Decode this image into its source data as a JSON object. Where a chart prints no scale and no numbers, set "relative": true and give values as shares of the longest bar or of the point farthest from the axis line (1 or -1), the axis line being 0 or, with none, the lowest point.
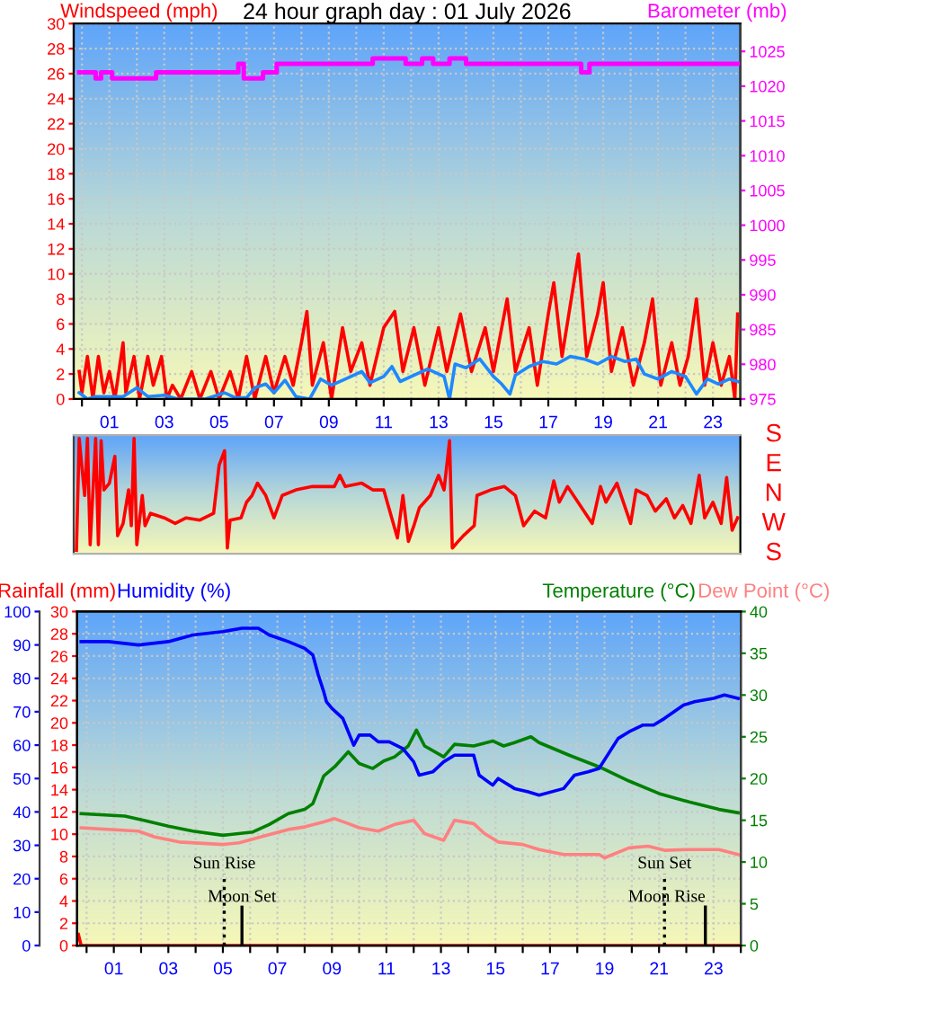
{
  "chart_data": [
    {
      "type": "line",
      "title": "24 hour graph day : 01 July 2026",
      "ylabel": "Windspeed (mph)",
      "y2label": "Barometer (mb)",
      "xlim": [
        -0.3,
        24
      ],
      "xticks": [
        {
          "value": 0,
          "label": null
        },
        {
          "value": 1,
          "label": "01"
        },
        {
          "value": 2,
          "label": null
        },
        {
          "value": 3,
          "label": "03"
        },
        {
          "value": 4,
          "label": null
        },
        {
          "value": 5,
          "label": "05"
        },
        {
          "value": 6,
          "label": null
        },
        {
          "value": 7,
          "label": "07"
        },
        {
          "value": 8,
          "label": null
        },
        {
          "value": 9,
          "label": "09"
        },
        {
          "value": 10,
          "label": null
        },
        {
          "value": 11,
          "label": "11"
        },
        {
          "value": 12,
          "label": null
        },
        {
          "value": 13,
          "label": "13"
        },
        {
          "value": 14,
          "label": null
        },
        {
          "value": 15,
          "label": "15"
        },
        {
          "value": 16,
          "label": null
        },
        {
          "value": 17,
          "label": "17"
        },
        {
          "value": 18,
          "label": null
        },
        {
          "value": 19,
          "label": "19"
        },
        {
          "value": 20,
          "label": null
        },
        {
          "value": 21,
          "label": "21"
        },
        {
          "value": 22,
          "label": null
        },
        {
          "value": 23,
          "label": "23"
        },
        {
          "value": 24,
          "label": null
        }
      ],
      "ylim": [
        0,
        30
      ],
      "yticks": [
        0,
        2,
        4,
        6,
        8,
        10,
        12,
        14,
        16,
        18,
        20,
        22,
        24,
        26,
        28,
        30
      ],
      "y2lim": [
        975,
        1029
      ],
      "y2ticks": [
        975,
        980,
        985,
        990,
        995,
        1000,
        1005,
        1010,
        1015,
        1020,
        1025
      ],
      "grid": true,
      "series": [
        {
          "color": "#ff0000",
          "x": [
            -0.1,
            0,
            0.2,
            0.4,
            0.6,
            0.8,
            1.0,
            1.2,
            1.5,
            1.6,
            1.9,
            2.1,
            2.4,
            2.6,
            2.9,
            3.1,
            3.3,
            3.6,
            4.0,
            4.3,
            4.7,
            5.0,
            5.4,
            5.7,
            6.0,
            6.3,
            6.7,
            7.0,
            7.4,
            7.7,
            8.0,
            8.2,
            8.4,
            8.8,
            9.1,
            9.5,
            9.8,
            10.2,
            10.5,
            11.0,
            11.4,
            11.7,
            12.1,
            12.5,
            13.0,
            13.3,
            13.8,
            14.2,
            14.7,
            15.0,
            15.5,
            15.8,
            16.3,
            16.6,
            17.0,
            17.2,
            17.5,
            18.1,
            18.4,
            18.8,
            19.0,
            19.3,
            19.7,
            20.1,
            20.5,
            20.8,
            21.1,
            21.5,
            21.8,
            22.1,
            22.4,
            22.7,
            23.0,
            23.3,
            23.6,
            23.8,
            23.9
          ],
          "values": [
            2.2,
            0.5,
            3.4,
            0,
            3.4,
            0.5,
            2.2,
            0,
            4.5,
            0.5,
            3.4,
            0,
            3.4,
            1.1,
            3.4,
            0,
            1.1,
            0,
            2.2,
            0,
            2.2,
            0,
            2.2,
            0,
            3.4,
            0,
            3.4,
            0.5,
            3.4,
            1.1,
            4.5,
            7.0,
            1.1,
            4.5,
            0,
            5.7,
            2.2,
            4.5,
            1.1,
            5.7,
            7.0,
            2.2,
            5.7,
            1.1,
            5.7,
            2.2,
            6.8,
            2.2,
            5.7,
            2.2,
            8.0,
            2.2,
            5.7,
            1.1,
            6.8,
            9.3,
            3.4,
            11.6,
            3.4,
            6.8,
            9.3,
            2.2,
            5.7,
            1.1,
            4.5,
            8.0,
            1.1,
            4.5,
            1.1,
            3.4,
            8.0,
            1.1,
            4.5,
            1.1,
            3.4,
            0,
            6.8
          ]
        },
        {
          "color": "#1e88ff",
          "x": [
            -0.1,
            0.2,
            0.5,
            1.0,
            1.5,
            2.0,
            2.4,
            3.0,
            3.5,
            4.5,
            5.2,
            5.6,
            6.0,
            6.3,
            6.7,
            7.0,
            7.4,
            7.8,
            8.3,
            8.7,
            9.1,
            9.7,
            10.2,
            10.5,
            11.0,
            11.3,
            11.6,
            12.2,
            12.6,
            13.2,
            13.4,
            13.6,
            14.0,
            14.5,
            15.0,
            15.3,
            15.6,
            15.8,
            16.3,
            16.8,
            17.3,
            17.8,
            18.3,
            18.8,
            19.3,
            19.8,
            20.2,
            20.5,
            21.0,
            21.5,
            22.0,
            22.4,
            22.8,
            23.2,
            23.6,
            23.9
          ],
          "values": [
            0.5,
            0,
            0.2,
            0.2,
            0.2,
            0.9,
            0.2,
            0.3,
            0,
            0,
            0.5,
            0.1,
            0.1,
            0.9,
            1.2,
            0.5,
            1.5,
            0.2,
            0,
            1.6,
            1.1,
            1.7,
            2.2,
            1.3,
            1.8,
            2.6,
            1.4,
            2.0,
            2.4,
            1.8,
            0,
            2.8,
            2.5,
            3.2,
            1.8,
            1.2,
            0.4,
            1.9,
            2.6,
            3.0,
            2.8,
            3.4,
            3.2,
            2.8,
            3.4,
            3.0,
            3.2,
            2.0,
            1.6,
            2.2,
            1.8,
            0.4,
            1.6,
            1.2,
            1.6,
            1.4
          ]
        },
        {
          "type": "step",
          "axis": "y2",
          "color": "#ff00ff",
          "x": [
            -0.1,
            0.5,
            0.7,
            1.1,
            2.7,
            5.7,
            5.9,
            6.6,
            7.1,
            10.6,
            11.8,
            12.4,
            12.8,
            13.4,
            14.0,
            18.2,
            18.5,
            23.9
          ],
          "values": [
            1022.0,
            1021.1,
            1022.0,
            1021.1,
            1022.0,
            1023.2,
            1021.1,
            1022.0,
            1023.2,
            1024.0,
            1023.2,
            1024.0,
            1023.2,
            1024.0,
            1023.2,
            1022.0,
            1023.2,
            1023.2
          ]
        }
      ]
    },
    {
      "type": "line",
      "relative": true,
      "xlim": [
        -0.3,
        24
      ],
      "tick_labels": false,
      "annotations": [
        "S",
        "E",
        "N",
        "W",
        "S"
      ],
      "series": [
        {
          "color": "#ff0000",
          "x": [
            -0.2,
            -0.1,
            0.1,
            0.2,
            0.3,
            0.5,
            0.6,
            0.7,
            0.8,
            1.0,
            1.2,
            1.3,
            1.5,
            1.7,
            1.8,
            1.9,
            2.0,
            2.1,
            2.2,
            2.3,
            2.5,
            3.0,
            3.4,
            3.8,
            4.3,
            4.8,
            5.0,
            5.2,
            5.3,
            5.4,
            5.8,
            6.0,
            6.2,
            6.4,
            6.7,
            7.0,
            7.3,
            7.8,
            8.4,
            9.2,
            9.4,
            9.6,
            10.2,
            10.6,
            11.0,
            11.5,
            11.7,
            11.9,
            12.1,
            12.3,
            12.7,
            13.0,
            13.2,
            13.4,
            13.5,
            13.9,
            14.3,
            14.4,
            14.9,
            15.4,
            15.8,
            16.1,
            16.5,
            16.9,
            17.2,
            17.4,
            17.7,
            18.0,
            18.3,
            18.6,
            18.9,
            19.1,
            19.5,
            20.0,
            20.2,
            20.6,
            20.9,
            21.3,
            21.6,
            21.9,
            22.2,
            22.5,
            22.7,
            23.0,
            23.3,
            23.5,
            23.7,
            23.9
          ],
          "values": [
            0,
            1,
            0.49,
            1,
            0.05,
            1,
            0.05,
            0.98,
            0.54,
            0.6,
            0.84,
            0.13,
            0.24,
            0.54,
            0.22,
            1,
            0.05,
            0.27,
            0.49,
            0.22,
            0.33,
            0.29,
            0.24,
            0.29,
            0.27,
            0.33,
            0.76,
            0.89,
            0.02,
            0.27,
            0.29,
            0.43,
            0.49,
            0.6,
            0.49,
            0.29,
            0.49,
            0.54,
            0.57,
            0.57,
            0.67,
            0.57,
            0.6,
            0.54,
            0.54,
            0.11,
            0.49,
            0.08,
            0.22,
            0.38,
            0.49,
            0.67,
            0.54,
            0.98,
            0.02,
            0.13,
            0.22,
            0.49,
            0.54,
            0.57,
            0.49,
            0.22,
            0.35,
            0.29,
            0.62,
            0.43,
            0.57,
            0.46,
            0.35,
            0.24,
            0.57,
            0.43,
            0.6,
            0.24,
            0.54,
            0.49,
            0.35,
            0.46,
            0.29,
            0.4,
            0.24,
            0.67,
            0.29,
            0.43,
            0.24,
            0.65,
            0.18,
            0.29
          ]
        }
      ]
    },
    {
      "type": "line",
      "ylabel": "Rainfall (mm)",
      "y3label": "Humidity (%)",
      "y2label": "Temperature (°C)",
      "xlim": [
        -0.35,
        24
      ],
      "xticks": [
        {
          "value": 0,
          "label": null
        },
        {
          "value": 1,
          "label": "01"
        },
        {
          "value": 2,
          "label": null
        },
        {
          "value": 3,
          "label": "03"
        },
        {
          "value": 4,
          "label": null
        },
        {
          "value": 5,
          "label": "05"
        },
        {
          "value": 6,
          "label": null
        },
        {
          "value": 7,
          "label": "07"
        },
        {
          "value": 8,
          "label": null
        },
        {
          "value": 9,
          "label": "09"
        },
        {
          "value": 10,
          "label": null
        },
        {
          "value": 11,
          "label": "11"
        },
        {
          "value": 12,
          "label": null
        },
        {
          "value": 13,
          "label": "13"
        },
        {
          "value": 14,
          "label": null
        },
        {
          "value": 15,
          "label": "15"
        },
        {
          "value": 16,
          "label": null
        },
        {
          "value": 17,
          "label": "17"
        },
        {
          "value": 18,
          "label": null
        },
        {
          "value": 19,
          "label": "19"
        },
        {
          "value": 20,
          "label": null
        },
        {
          "value": 21,
          "label": "21"
        },
        {
          "value": 22,
          "label": null
        },
        {
          "value": 23,
          "label": "23"
        },
        {
          "value": 24,
          "label": null
        }
      ],
      "ylim": [
        0,
        30
      ],
      "yticks": [
        0,
        2,
        4,
        6,
        8,
        10,
        12,
        14,
        16,
        18,
        20,
        22,
        24,
        26,
        28,
        30
      ],
      "y3lim": [
        0,
        100
      ],
      "y3ticks": [
        0,
        10,
        20,
        30,
        40,
        50,
        60,
        70,
        80,
        90,
        100
      ],
      "y2lim": [
        0,
        40
      ],
      "y2ticks": [
        0,
        5,
        10,
        15,
        20,
        25,
        30,
        35,
        40
      ],
      "grid": true,
      "ref_lines": [
        {
          "axis": "x",
          "value": 5.05,
          "label": "Sun Rise",
          "color": "#000000",
          "line_style": "dotted"
        },
        {
          "axis": "x",
          "value": 5.7,
          "label": "Moon Set",
          "line_style": "solid"
        },
        {
          "axis": "x",
          "value": 21.2,
          "label": "Sun Set",
          "color": "#000000",
          "line_style": "dotted"
        },
        {
          "axis": "x",
          "value": 22.7,
          "label": "Moon Rise",
          "line_style": "solid"
        }
      ],
      "series": [
        {
          "color": "#ff0000",
          "x": [
            -0.3,
            -0.2,
            -0.1,
            23.9
          ],
          "values": [
            1,
            0,
            0,
            0
          ]
        },
        {
          "axis": "y3",
          "color": "#0000ff",
          "x": [
            -0.2,
            0.8,
            1.9,
            3.0,
            3.9,
            5.0,
            5.7,
            6.3,
            6.7,
            7.4,
            8.0,
            8.3,
            8.5,
            8.7,
            8.8,
            9.0,
            9.4,
            9.6,
            9.8,
            10.0,
            10.4,
            10.7,
            11.1,
            11.6,
            12.0,
            12.2,
            12.7,
            13.1,
            13.5,
            14.2,
            14.4,
            14.9,
            15.1,
            15.7,
            16.2,
            16.6,
            17.5,
            17.9,
            18.4,
            18.8,
            19.5,
            19.9,
            20.4,
            20.8,
            21.2,
            21.9,
            22.3,
            23.0,
            23.4,
            23.9
          ],
          "values": [
            91,
            91,
            90,
            91,
            93,
            94,
            95,
            95,
            93,
            91,
            89,
            87,
            81,
            76,
            73,
            71,
            68,
            64,
            60,
            63,
            63,
            61,
            61,
            59,
            55,
            51,
            52,
            55,
            57,
            57,
            51,
            48,
            50,
            47,
            46,
            45,
            47,
            51,
            52,
            53,
            62,
            64,
            66,
            66,
            68,
            72,
            73,
            74,
            75,
            74
          ]
        },
        {
          "axis": "y2",
          "color": "#008000",
          "x": [
            -0.2,
            1.4,
            2.1,
            3.0,
            3.9,
            5.0,
            6.1,
            6.7,
            7.4,
            8.0,
            8.3,
            8.7,
            9.1,
            9.6,
            10.0,
            10.5,
            10.9,
            11.3,
            11.8,
            12.1,
            12.4,
            13.1,
            13.5,
            14.2,
            14.9,
            15.3,
            15.7,
            16.3,
            16.6,
            17.7,
            18.8,
            19.9,
            21.0,
            22.1,
            23.2,
            23.9
          ],
          "values": [
            15.8,
            15.5,
            15.0,
            14.3,
            13.7,
            13.2,
            13.6,
            14.5,
            15.8,
            16.3,
            17.0,
            20.3,
            21.4,
            23.2,
            21.8,
            21.2,
            22.1,
            22.6,
            23.9,
            25.8,
            23.9,
            22.6,
            24.1,
            23.9,
            24.5,
            23.9,
            24.3,
            25.0,
            24.3,
            22.8,
            21.4,
            19.7,
            18.2,
            17.2,
            16.3,
            15.9
          ]
        },
        {
          "axis": "y2",
          "name": "Dew Point (°C)",
          "color": "#ff8080",
          "x": [
            -0.2,
            1.9,
            2.5,
            3.4,
            5.0,
            5.6,
            6.5,
            7.4,
            8.0,
            8.7,
            9.1,
            9.6,
            10.0,
            10.7,
            11.3,
            12.0,
            12.4,
            13.1,
            13.5,
            14.2,
            14.6,
            15.1,
            16.0,
            16.6,
            17.5,
            18.8,
            19.0,
            19.9,
            20.6,
            21.2,
            22.1,
            23.2,
            23.9
          ],
          "values": [
            14.1,
            13.7,
            13.0,
            12.4,
            12.1,
            12.3,
            13.1,
            13.9,
            14.2,
            14.8,
            15.2,
            14.6,
            14.1,
            13.7,
            14.5,
            15.0,
            13.4,
            12.6,
            15.0,
            14.6,
            13.4,
            12.4,
            12.1,
            11.5,
            10.9,
            10.9,
            10.5,
            11.7,
            11.9,
            11.4,
            11.5,
            11.5,
            10.9
          ]
        }
      ]
    }
  ]
}
